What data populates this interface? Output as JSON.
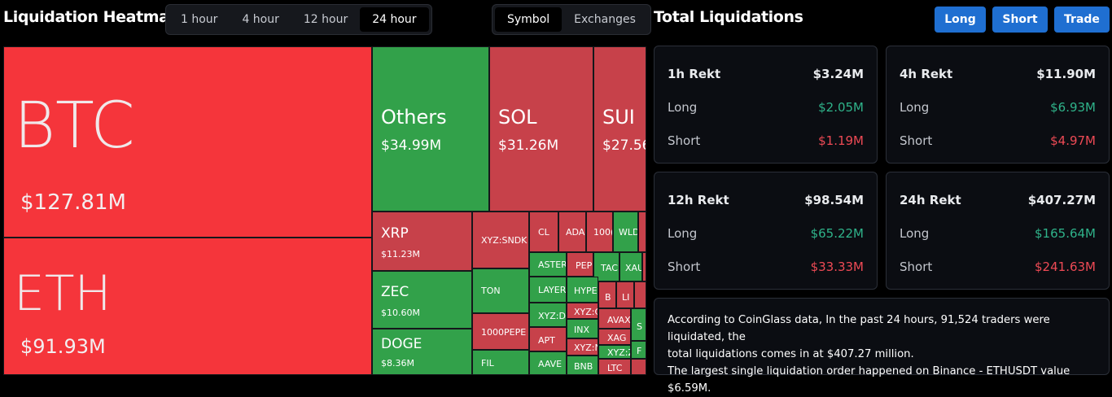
{
  "header": {
    "title": "Liquidation Heatmap",
    "timeframes": [
      "1 hour",
      "4 hour",
      "12 hour",
      "24 hour"
    ],
    "active_timeframe": "24 hour",
    "views": [
      "Symbol",
      "Exchanges"
    ],
    "active_view": "Symbol"
  },
  "panel": {
    "title": "Total Liquidations",
    "buttons": {
      "long": "Long",
      "short": "Short",
      "trade": "Trade"
    }
  },
  "heatmap": {
    "btc": {
      "symbol": "BTC",
      "value": "$127.81M"
    },
    "eth": {
      "symbol": "ETH",
      "value": "$91.93M"
    },
    "others": {
      "symbol": "Others",
      "value": "$34.99M"
    },
    "sol": {
      "symbol": "SOL",
      "value": "$31.26M"
    },
    "sui": {
      "symbol": "SUI",
      "value": "$27.56"
    },
    "xrp": {
      "symbol": "XRP",
      "value": "$11.23M"
    },
    "zec": {
      "symbol": "ZEC",
      "value": "$10.60M"
    },
    "doge": {
      "symbol": "DOGE",
      "value": "$8.36M"
    },
    "small": {
      "xyz_sndk": "XYZ:SNDK",
      "cl": "CL",
      "ada": "ADA",
      "t1000": "100(",
      "wld": "WLD",
      "aster": "ASTER",
      "pep": "PEP",
      "tac": "TAC",
      "xau": "XAU",
      "ton": "TON",
      "layer": "LAYER",
      "hype": "HYPE",
      "b": "B",
      "li": "LI",
      "xyz_d": "XYZ:D",
      "xyz_c": "XYZ:C",
      "pepe1000": "1000PEPE",
      "inx": "INX",
      "avax": "AVAX",
      "apt": "APT",
      "xag": "XAG",
      "s": "S",
      "xyz_n": "XYZ:N",
      "xyz_z": "XYZ:Z",
      "f": "F",
      "fil": "FIL",
      "aave": "AAVE",
      "bnb": "BNB",
      "ltc": "LTC"
    }
  },
  "stats": {
    "h1": {
      "label": "1h Rekt",
      "total": "$3.24M",
      "long_label": "Long",
      "long": "$2.05M",
      "short_label": "Short",
      "short": "$1.19M"
    },
    "h4": {
      "label": "4h Rekt",
      "total": "$11.90M",
      "long_label": "Long",
      "long": "$6.93M",
      "short_label": "Short",
      "short": "$4.97M"
    },
    "h12": {
      "label": "12h Rekt",
      "total": "$98.54M",
      "long_label": "Long",
      "long": "$65.22M",
      "short_label": "Short",
      "short": "$33.33M"
    },
    "h24": {
      "label": "24h Rekt",
      "total": "$407.27M",
      "long_label": "Long",
      "long": "$165.64M",
      "short_label": "Short",
      "short": "$241.63M"
    }
  },
  "summary": {
    "line1": "According to CoinGlass data, In the past 24 hours, 91,524 traders were liquidated, the",
    "line2": "total liquidations comes in at $407.27 million.",
    "line3": "The largest single liquidation order happened on Binance - ETHUSDT value $6.59M."
  },
  "colors": {
    "short_block": "#f5353b",
    "mixed_block": "#c7414a",
    "long_block": "#32a14a",
    "positive": "#2fb38a",
    "negative": "#ee4a55",
    "accent": "#1f6fd1"
  }
}
